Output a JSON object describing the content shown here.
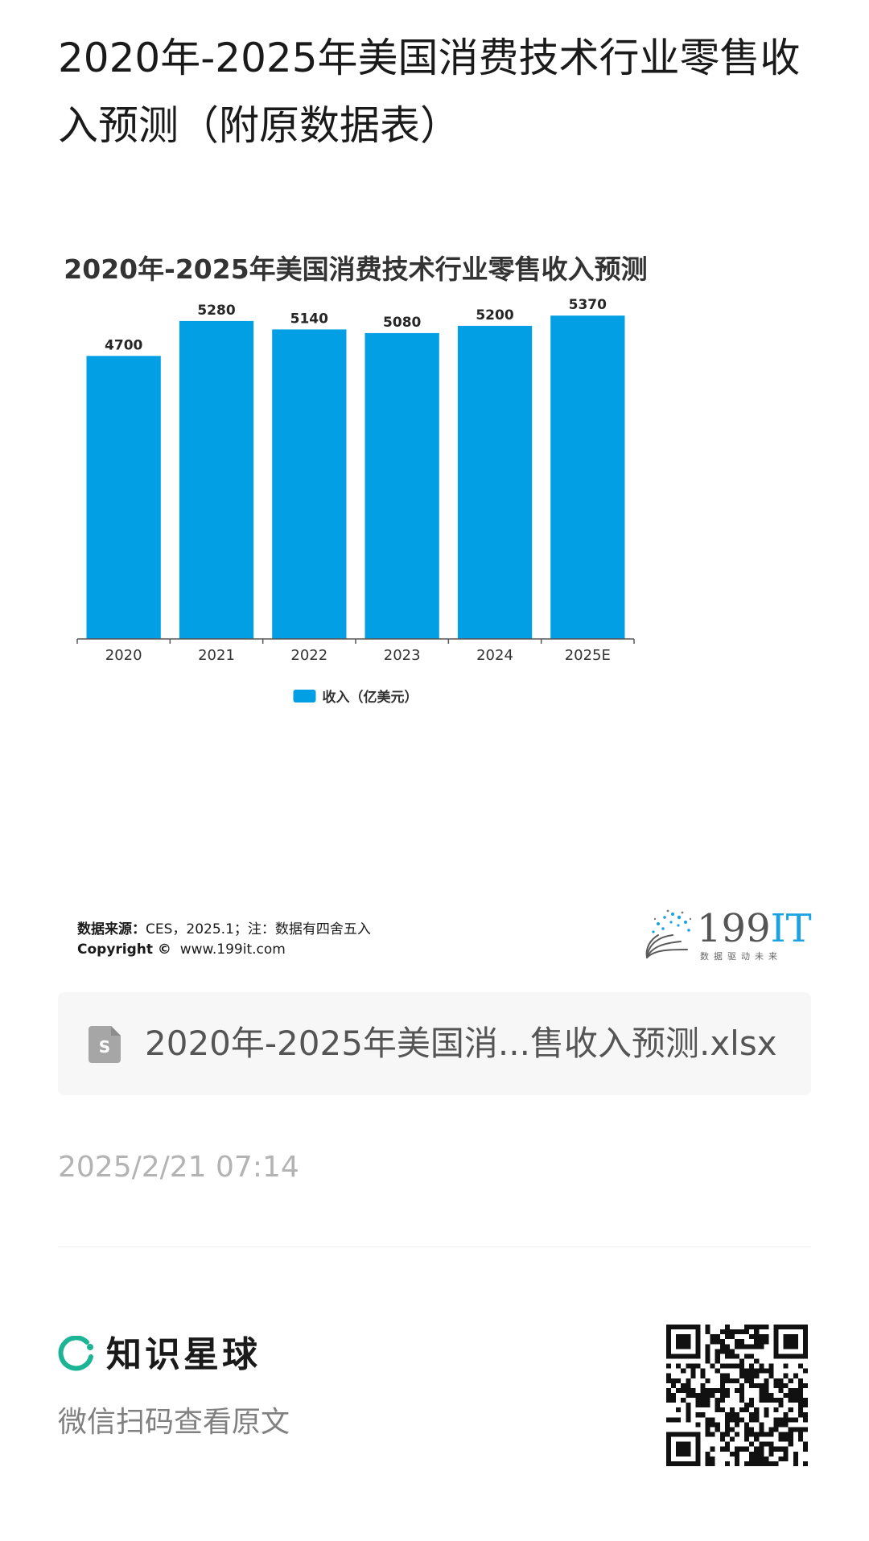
{
  "post": {
    "title": "2020年-2025年美国消费技术行业零售收入预测（附原数据表）",
    "time": "2025/2/21 07:14"
  },
  "chart_data": {
    "type": "bar",
    "title": "2020年-2025年美国消费技术行业零售收入预测",
    "categories": [
      "2020",
      "2021",
      "2022",
      "2023",
      "2024",
      "2025E"
    ],
    "series": [
      {
        "name": "收入（亿美元）",
        "values": [
          4700,
          5280,
          5140,
          5080,
          5200,
          5370
        ],
        "color": "#039fe5"
      }
    ],
    "ylim": [
      0,
      5800
    ],
    "grid": false,
    "legend_position": "bottom-center",
    "data_labels": true
  },
  "source": {
    "label": "数据来源：",
    "text": "CES，2025.1；注：数据有四舍五入",
    "copyright_label": "Copyright ©",
    "copyright_text": "www.199it.com"
  },
  "logo": {
    "nums": "199",
    "it": "IT",
    "tagline": "数据驱动未来"
  },
  "file": {
    "name": "2020年-2025年美国消...售收入预测.xlsx",
    "icon": "spreadsheet-file-icon",
    "icon_letter": "S"
  },
  "brand": {
    "name": "知识星球",
    "subtitle": "微信扫码查看原文",
    "icon": "ring-logo-icon",
    "accent": "#1bb495"
  }
}
